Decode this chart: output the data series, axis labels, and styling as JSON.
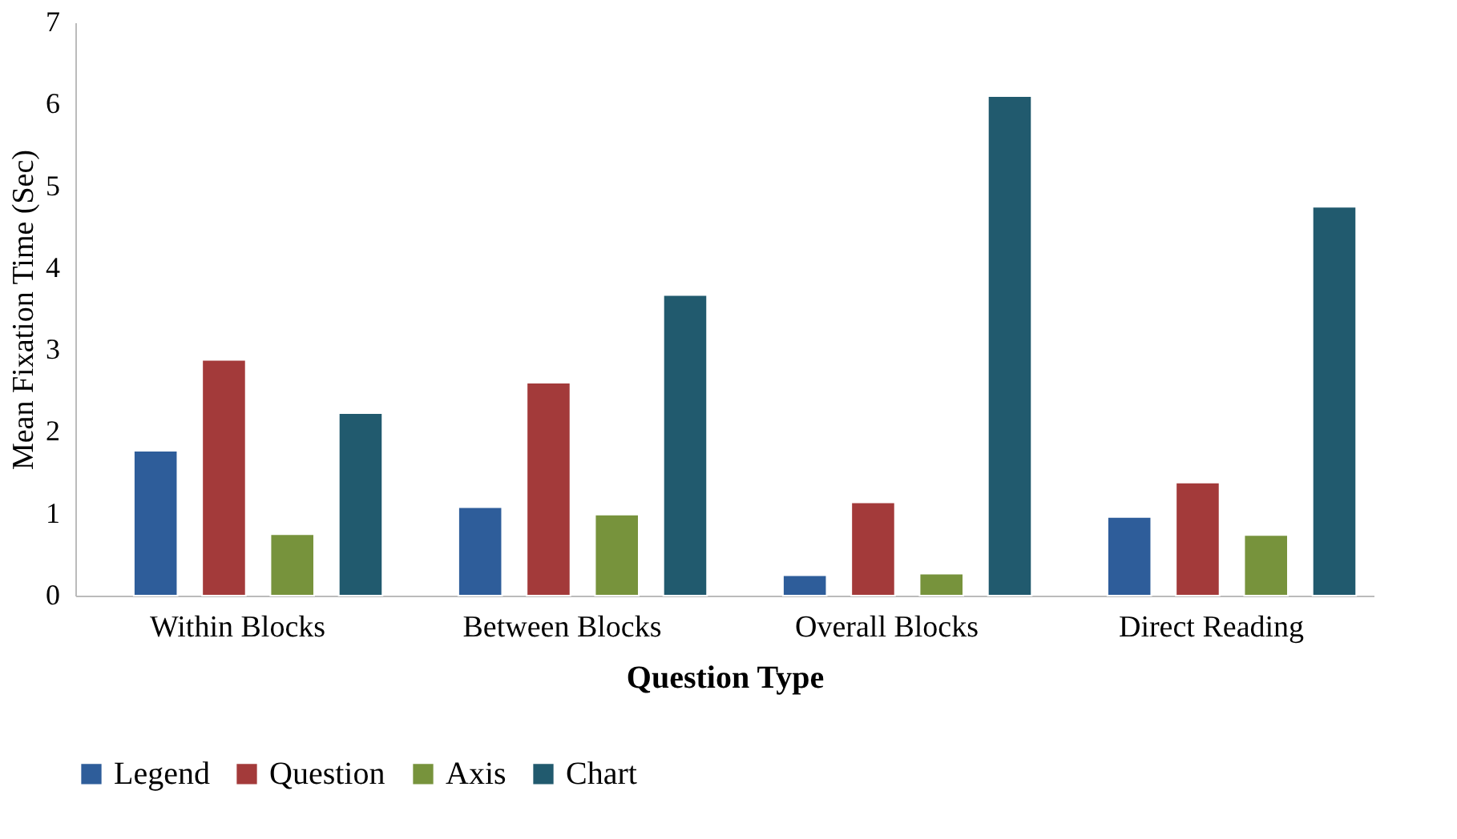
{
  "chart_data": {
    "type": "bar",
    "xlabel": "Question Type",
    "ylabel": "Mean Fixation Time (Sec)",
    "categories": [
      "Within Blocks",
      "Between Blocks",
      "Overall Blocks",
      "Direct Reading"
    ],
    "series": [
      {
        "name": "Legend",
        "color": "#2e5d9a",
        "values": [
          1.77,
          1.08,
          0.25,
          0.96
        ]
      },
      {
        "name": "Question",
        "color": "#a33a3a",
        "values": [
          2.88,
          2.6,
          1.14,
          1.38
        ]
      },
      {
        "name": "Axis",
        "color": "#77933c",
        "values": [
          0.75,
          0.99,
          0.27,
          0.74
        ]
      },
      {
        "name": "Chart",
        "color": "#215a6e",
        "values": [
          2.23,
          3.67,
          6.1,
          4.75
        ]
      }
    ],
    "ylim": [
      0,
      7
    ],
    "yticks": [
      0,
      1,
      2,
      3,
      4,
      5,
      6,
      7
    ],
    "grid": false,
    "legend": "bottom"
  }
}
